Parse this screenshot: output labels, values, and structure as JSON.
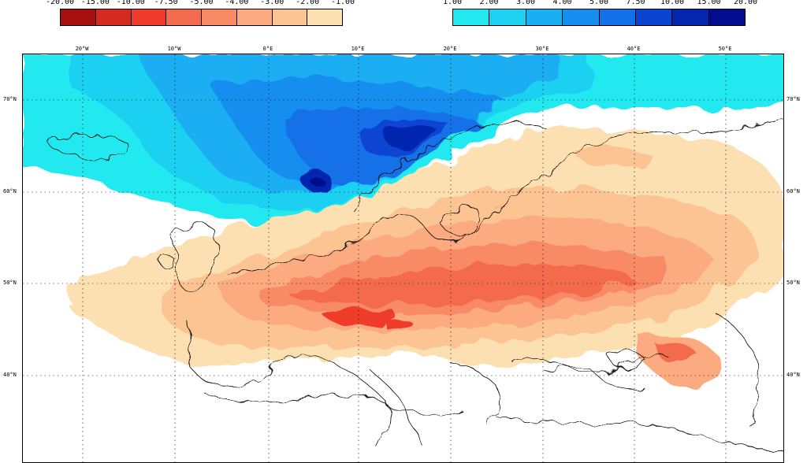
{
  "legend_negative": {
    "labels": [
      "-20.00",
      "-15.00",
      "-10.00",
      "-7.50",
      "-5.00",
      "-4.00",
      "-3.00",
      "-2.00",
      "-1.00"
    ],
    "colors": [
      "#a50f0f",
      "#d42a22",
      "#ef3b2c",
      "#f46a4e",
      "#f88a65",
      "#fbab7f",
      "#fdc493",
      "#fde0b2"
    ]
  },
  "legend_positive": {
    "labels": [
      "1.00",
      "2.00",
      "3.00",
      "4.00",
      "5.00",
      "7.50",
      "10.00",
      "15.00",
      "20.00"
    ],
    "colors": [
      "#22e8f0",
      "#1ed0f2",
      "#1aaef2",
      "#158ef0",
      "#1270e8",
      "#0a45d2",
      "#0626b0",
      "#020c8e"
    ]
  },
  "longitude_labels": [
    "20°W",
    "10°W",
    "0°E",
    "10°E",
    "20°E",
    "30°E",
    "40°E",
    "50°E"
  ],
  "latitude_labels": [
    "70°N",
    "60°N",
    "50°N",
    "40°N"
  ]
}
